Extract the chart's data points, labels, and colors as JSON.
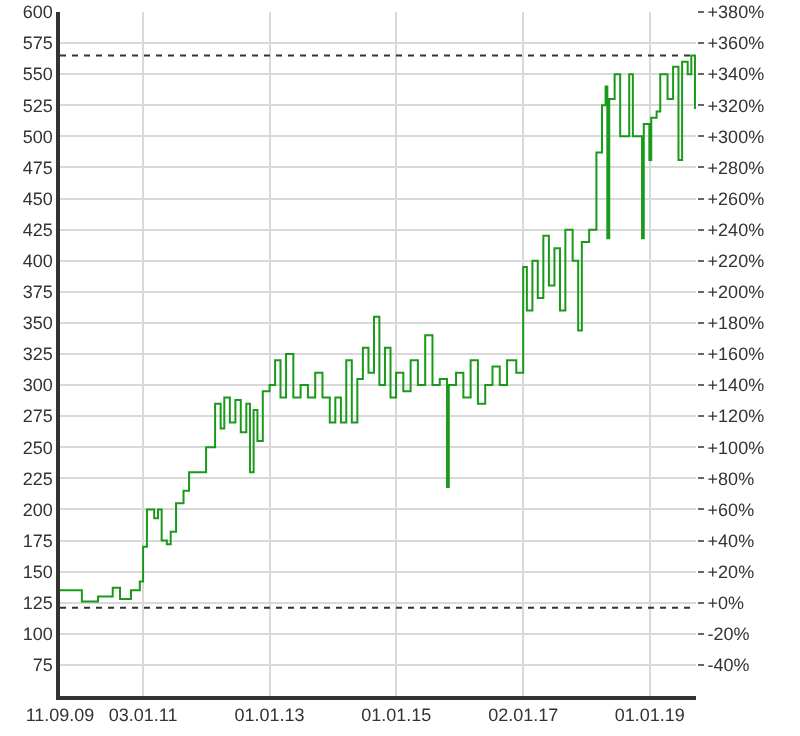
{
  "chart_data": {
    "type": "step",
    "x": [
      "2009-09-11",
      "2010-01-15",
      "2010-04-18",
      "2010-07-12",
      "2010-08-23",
      "2010-10-25",
      "2010-12-15",
      "2011-01-03",
      "2011-01-25",
      "2011-03-08",
      "2011-03-30",
      "2011-04-20",
      "2011-05-20",
      "2011-06-11",
      "2011-07-12",
      "2011-08-24",
      "2011-09-25",
      "2012-01-01",
      "2012-02-22",
      "2012-03-25",
      "2012-04-15",
      "2012-05-17",
      "2012-06-18",
      "2012-07-19",
      "2012-08-20",
      "2012-09-10",
      "2012-10-01",
      "2012-10-23",
      "2012-11-23",
      "2013-01-01",
      "2013-02-02",
      "2013-03-05",
      "2013-04-06",
      "2013-05-18",
      "2013-06-29",
      "2013-08-10",
      "2013-09-21",
      "2013-11-02",
      "2013-12-14",
      "2014-01-15",
      "2014-02-16",
      "2014-03-19",
      "2014-04-20",
      "2014-05-22",
      "2014-06-23",
      "2014-07-25",
      "2014-08-26",
      "2014-09-26",
      "2014-10-28",
      "2014-11-29",
      "2014-12-31",
      "2015-02-11",
      "2015-03-25",
      "2015-05-06",
      "2015-06-17",
      "2015-07-29",
      "2015-09-09",
      "2015-10-21",
      "2015-10-31",
      "2015-12-12",
      "2016-01-23",
      "2016-03-05",
      "2016-04-16",
      "2016-05-28",
      "2016-07-09",
      "2016-08-20",
      "2016-10-01",
      "2016-11-23",
      "2017-01-02",
      "2017-01-23",
      "2017-02-24",
      "2017-03-27",
      "2017-04-28",
      "2017-05-30",
      "2017-07-01",
      "2017-08-02",
      "2017-09-02",
      "2017-10-14",
      "2017-11-15",
      "2017-12-06",
      "2018-01-17",
      "2018-02-28",
      "2018-04-01",
      "2018-04-22",
      "2018-05-02",
      "2018-05-13",
      "2018-06-13",
      "2018-07-15",
      "2018-09-05",
      "2018-09-26",
      "2018-11-18",
      "2018-11-28",
      "2018-12-30",
      "2019-01-10",
      "2019-02-10",
      "2019-03-03",
      "2019-04-14",
      "2019-05-16",
      "2019-06-16",
      "2019-07-07",
      "2019-08-08",
      "2019-08-29",
      "2019-09-19"
    ],
    "series": [
      {
        "color": "#1a9a1a",
        "values": [
          135,
          126,
          130,
          137,
          128,
          135,
          142,
          170,
          200,
          193,
          200,
          175,
          172,
          182,
          205,
          215,
          230,
          250,
          285,
          265,
          290,
          270,
          288,
          262,
          285,
          230,
          280,
          255,
          295,
          300,
          320,
          290,
          325,
          290,
          300,
          290,
          310,
          290,
          270,
          290,
          270,
          320,
          270,
          305,
          330,
          310,
          355,
          300,
          330,
          290,
          310,
          295,
          320,
          300,
          340,
          300,
          305,
          218,
          300,
          310,
          290,
          320,
          285,
          300,
          315,
          300,
          320,
          310,
          395,
          360,
          400,
          370,
          420,
          380,
          410,
          360,
          425,
          400,
          344,
          415,
          425,
          487,
          525,
          540,
          418,
          530,
          550,
          500,
          550,
          500,
          418,
          510,
          481,
          515,
          520,
          550,
          530,
          556,
          481,
          560,
          550,
          565,
          522
        ]
      }
    ],
    "xlim": [
      "2009-09-11",
      "2019-09-25"
    ],
    "xticks": [
      {
        "value": "2009-09-11",
        "label": "11.09.09"
      },
      {
        "value": "2011-01-03",
        "label": "03.01.11"
      },
      {
        "value": "2013-01-01",
        "label": "01.01.13"
      },
      {
        "value": "2015-01-01",
        "label": "01.01.15"
      },
      {
        "value": "2017-01-02",
        "label": "02.01.17"
      },
      {
        "value": "2019-01-01",
        "label": "01.01.19"
      }
    ],
    "ylim": [
      50,
      600
    ],
    "yticks": [
      75,
      100,
      125,
      150,
      175,
      200,
      225,
      250,
      275,
      300,
      325,
      350,
      375,
      400,
      425,
      450,
      475,
      500,
      525,
      550,
      575,
      600
    ],
    "y2lim": [
      -60,
      380
    ],
    "y2ticks": [
      {
        "value": -40,
        "label": "-40%"
      },
      {
        "value": -20,
        "label": "-20%"
      },
      {
        "value": 0,
        "label": "+0%"
      },
      {
        "value": 20,
        "label": "+20%"
      },
      {
        "value": 40,
        "label": "+40%"
      },
      {
        "value": 60,
        "label": "+60%"
      },
      {
        "value": 80,
        "label": "+80%"
      },
      {
        "value": 100,
        "label": "+100%"
      },
      {
        "value": 120,
        "label": "+120%"
      },
      {
        "value": 140,
        "label": "+140%"
      },
      {
        "value": 160,
        "label": "+160%"
      },
      {
        "value": 180,
        "label": "+180%"
      },
      {
        "value": 200,
        "label": "+200%"
      },
      {
        "value": 220,
        "label": "+220%"
      },
      {
        "value": 240,
        "label": "+240%"
      },
      {
        "value": 260,
        "label": "+260%"
      },
      {
        "value": 280,
        "label": "+280%"
      },
      {
        "value": 300,
        "label": "+300%"
      },
      {
        "value": 320,
        "label": "+320%"
      },
      {
        "value": 340,
        "label": "+340%"
      },
      {
        "value": 360,
        "label": "+360%"
      },
      {
        "value": 380,
        "label": "+380%"
      }
    ],
    "ref_lines": [
      {
        "axis": "y",
        "value": 565,
        "color": "#333333",
        "line_style": "dotted"
      },
      {
        "axis": "y",
        "value": 121,
        "color": "#333333",
        "line_style": "dotted"
      }
    ],
    "grid": true,
    "marker": "none",
    "line_style": "solid"
  }
}
